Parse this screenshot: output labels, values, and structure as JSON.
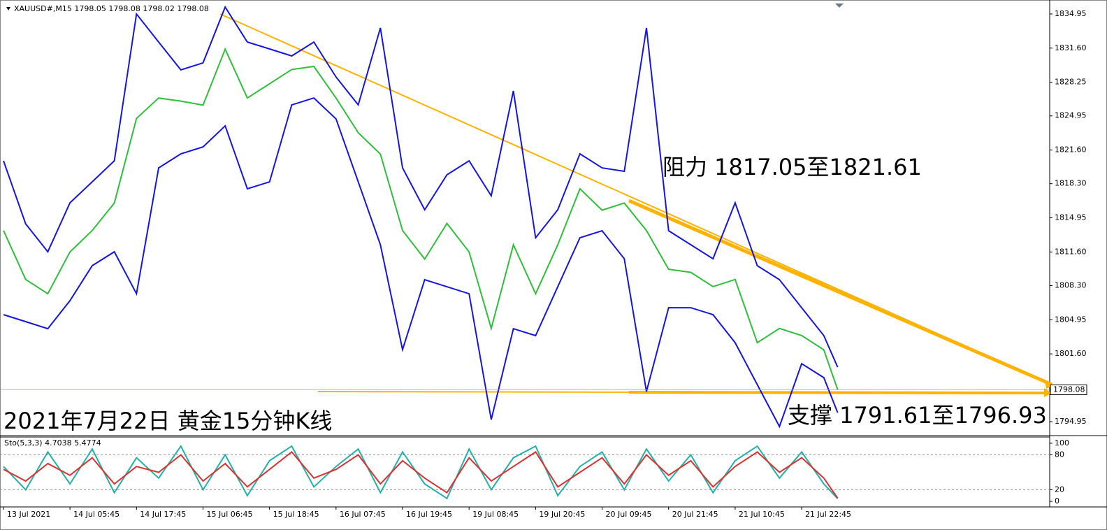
{
  "header": {
    "symbol": "XAUUSD#,M15",
    "ohlc": [
      1798.05,
      1798.08,
      1798.02,
      1798.08
    ]
  },
  "annotations": {
    "resistance": "阻力 1817.05至1821.61",
    "support": "支撑 1791.61至1796.93",
    "caption": "2021年7月22日 黄金15分钟K线"
  },
  "chart_data": [
    {
      "type": "line",
      "x": [
        0,
        16,
        32,
        48,
        64,
        80,
        96,
        112,
        128,
        144,
        160,
        176,
        192,
        208,
        224,
        240,
        256,
        272,
        288,
        304,
        320,
        336,
        352,
        368,
        384,
        400,
        416,
        432,
        448,
        464,
        480,
        496,
        512,
        528,
        544,
        560,
        576,
        592,
        602
      ],
      "series": [
        {
          "color": "#1414e6",
          "values": [
            1820.54,
            1814.36,
            1811.62,
            1816.42,
            1818.48,
            1820.54,
            1834.95,
            1832.2,
            1829.46,
            1830.15,
            1835.63,
            1832.2,
            1831.52,
            1830.83,
            1832.2,
            1828.77,
            1826.03,
            1833.58,
            1819.85,
            1815.74,
            1819.17,
            1820.54,
            1817.11,
            1827.4,
            1812.99,
            1815.74,
            1821.23,
            1819.85,
            1819.51,
            1833.58,
            1813.68,
            1812.31,
            1810.93,
            1816.42,
            1810.25,
            1808.88,
            1806.13,
            1803.39,
            1800.3
          ]
        },
        {
          "color": "#1414e6",
          "values": [
            1805.45,
            1804.76,
            1804.07,
            1806.82,
            1810.25,
            1811.62,
            1807.5,
            1819.85,
            1821.23,
            1821.91,
            1823.97,
            1817.8,
            1818.48,
            1826.03,
            1826.71,
            1824.66,
            1818.48,
            1812.31,
            1802.01,
            1808.88,
            1808.19,
            1807.5,
            1795.15,
            1804.07,
            1803.39,
            1808.19,
            1812.99,
            1813.68,
            1810.93,
            1797.9,
            1806.13,
            1806.13,
            1805.45,
            1802.7,
            1798.58,
            1794.47,
            1800.64,
            1799.27,
            1795.84
          ]
        },
        {
          "color": "#2fbf3a",
          "values": [
            1813.7,
            1808.9,
            1807.5,
            1811.6,
            1813.7,
            1816.4,
            1824.7,
            1826.7,
            1826.4,
            1826.0,
            1831.5,
            1826.7,
            1828.1,
            1829.5,
            1829.8,
            1826.7,
            1823.3,
            1821.2,
            1813.7,
            1810.9,
            1814.4,
            1811.6,
            1804.1,
            1812.3,
            1807.5,
            1812.3,
            1817.8,
            1815.7,
            1816.4,
            1813.7,
            1809.9,
            1809.6,
            1808.2,
            1808.9,
            1802.7,
            1804.1,
            1803.4,
            1802.0,
            1798.08
          ]
        }
      ],
      "last_price": 1798.08,
      "xlim": [
        -2.5,
        755
      ],
      "ylim": [
        1793.65,
        1836.32
      ],
      "yticks": [
        1834.95,
        {
          "value": 1831.6,
          "label": "1831.60"
        },
        {
          "value": 1828.25,
          "label": "1828.25"
        },
        1824.95,
        {
          "value": 1821.6,
          "label": "1821.60"
        },
        {
          "value": 1818.3,
          "label": "1818.30"
        },
        1814.95,
        {
          "value": 1811.6,
          "label": "1811.60"
        },
        {
          "value": 1808.3,
          "label": "1808.30"
        },
        1804.95,
        {
          "value": 1801.6,
          "label": "1801.60"
        },
        1794.95
      ]
    },
    {
      "type": "line",
      "title": "Sto(5,3,3)",
      "indicator_values": [
        4.7038,
        5.4774
      ],
      "x": [
        0,
        16,
        32,
        48,
        64,
        80,
        96,
        112,
        128,
        144,
        160,
        176,
        192,
        208,
        224,
        240,
        256,
        272,
        288,
        304,
        320,
        336,
        352,
        368,
        384,
        400,
        416,
        432,
        448,
        464,
        480,
        496,
        512,
        528,
        544,
        560,
        576,
        592,
        602
      ],
      "series": [
        {
          "color": "#20b2aa",
          "values": [
            60,
            20,
            85,
            30,
            90,
            15,
            75,
            40,
            95,
            20,
            80,
            10,
            70,
            95,
            25,
            60,
            90,
            15,
            85,
            30,
            5,
            90,
            20,
            75,
            95,
            10,
            60,
            85,
            20,
            90,
            35,
            80,
            15,
            70,
            95,
            40,
            85,
            30,
            4.7038
          ]
        },
        {
          "color": "#e03030",
          "values": [
            55,
            35,
            65,
            45,
            75,
            30,
            60,
            50,
            80,
            35,
            65,
            25,
            55,
            85,
            40,
            55,
            80,
            30,
            70,
            40,
            15,
            75,
            35,
            60,
            85,
            25,
            50,
            75,
            30,
            80,
            45,
            70,
            25,
            60,
            85,
            50,
            75,
            40,
            5.4774
          ]
        }
      ],
      "xlim": [
        -2.5,
        755
      ],
      "ylim": [
        -8.3,
        109.5
      ],
      "yticks": [
        100,
        80,
        20,
        0
      ],
      "xticks": [
        {
          "value": 0,
          "label": "13 Jul 2021"
        },
        {
          "value": 48,
          "label": "14 Jul 05:45"
        },
        {
          "value": 96,
          "label": "14 Jul 17:45"
        },
        {
          "value": 144,
          "label": "15 Jul 06:45"
        },
        {
          "value": 192,
          "label": "15 Jul 18:45"
        },
        {
          "value": 240,
          "label": "16 Jul 07:45"
        },
        {
          "value": 288,
          "label": "16 Jul 19:45"
        },
        {
          "value": 336,
          "label": "19 Jul 08:45"
        },
        {
          "value": 384,
          "label": "19 Jul 20:45"
        },
        {
          "value": 432,
          "label": "20 Jul 09:45"
        },
        {
          "value": 480,
          "label": "20 Jul 21:45"
        },
        {
          "value": 528,
          "label": "21 Jul 10:45"
        },
        {
          "value": 576,
          "label": "21 Jul 22:45"
        }
      ]
    }
  ]
}
